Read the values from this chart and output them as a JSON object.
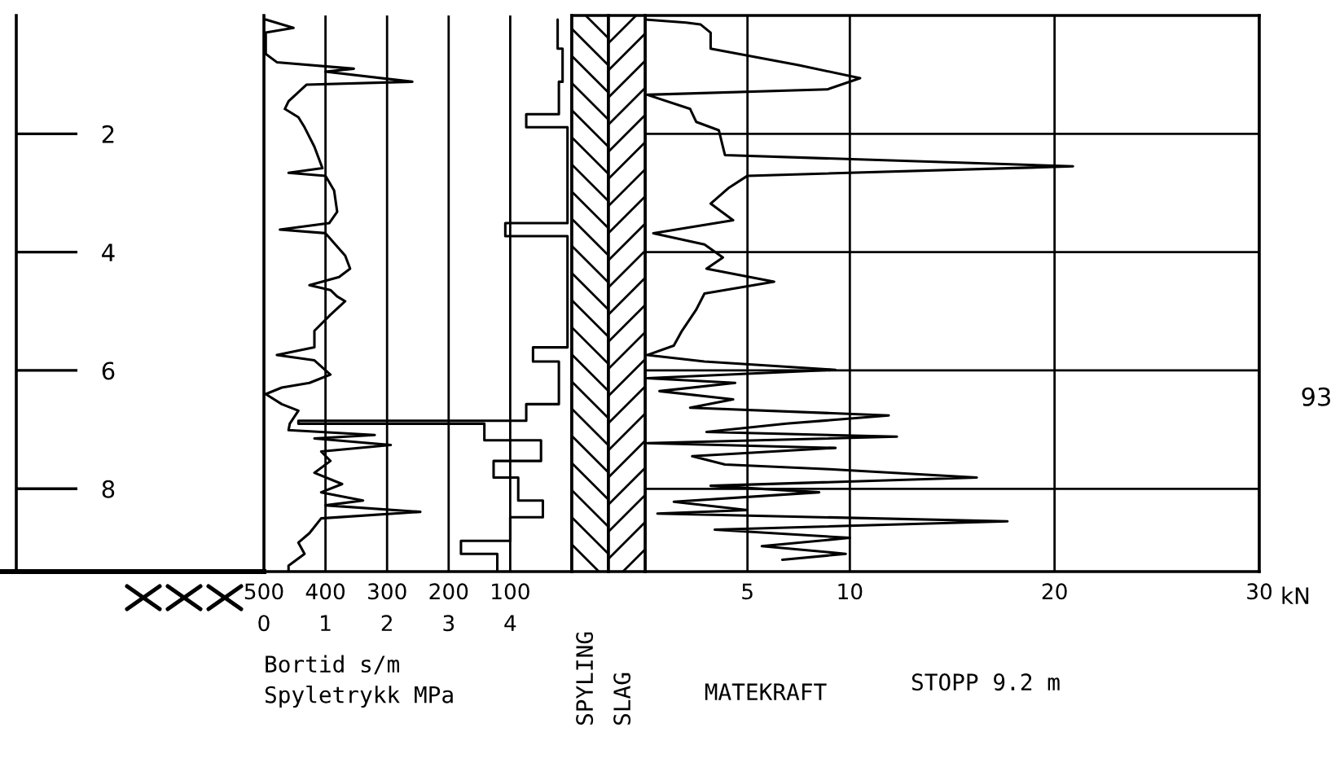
{
  "chart_data": [
    {
      "type": "line",
      "orientation": "horizontal",
      "xlabel": "Bortid s/m",
      "x2label": "Spyletrykk MPa",
      "xlim": [
        500,
        0
      ],
      "xticks": [
        500,
        400,
        300,
        200,
        100
      ],
      "x2lim": [
        0,
        5
      ],
      "x2ticks": [
        0,
        1,
        2,
        3,
        4
      ],
      "ylim": [
        9.4,
        0
      ],
      "yticks": [
        2,
        4,
        6,
        8
      ],
      "grid": "x",
      "annotations": [
        "SPYLING",
        "SLAG"
      ],
      "series": [
        {
          "color": "#000000",
          "x": [
            0.07,
            0.21,
            0.29,
            0.65,
            0.79,
            0.9,
            0.95,
            1.12,
            1.17,
            1.45,
            1.58,
            1.72,
            1.89,
            2.22,
            2.58,
            2.66,
            2.71,
            2.96,
            3.32,
            3.51,
            3.62,
            3.68,
            4.06,
            4.28,
            4.42,
            4.56,
            4.64,
            4.75,
            4.83,
            5.06,
            5.33,
            5.61,
            5.74,
            5.83,
            6.07,
            6.21,
            6.29,
            6.4,
            6.57,
            6.68,
            6.9,
            7.01,
            7.09,
            7.15,
            7.26,
            7.37,
            7.53,
            7.73,
            7.92,
            8.06,
            8.2,
            8.28,
            8.39,
            8.5,
            8.75,
            8.91,
            9.1,
            9.3,
            9.4
          ],
          "values": [
            497,
            452,
            497,
            497,
            479,
            354,
            400,
            259,
            431,
            460,
            466,
            444,
            434,
            418,
            405,
            460,
            400,
            386,
            381,
            394,
            474,
            400,
            368,
            360,
            378,
            426,
            392,
            381,
            368,
            392,
            418,
            418,
            479,
            418,
            392,
            426,
            471,
            497,
            471,
            444,
            458,
            460,
            320,
            418,
            294,
            407,
            392,
            418,
            373,
            407,
            339,
            400,
            246,
            407,
            426,
            444,
            434,
            460,
            460
          ]
        },
        {
          "type": "step",
          "axis": "x2",
          "color": "#000000",
          "x": [
            0.07,
            0.56,
            1.12,
            1.67,
            1.89,
            3.51,
            3.73,
            5.61,
            5.85,
            6.57,
            6.85,
            6.9,
            7.18,
            7.53,
            7.81,
            8.2,
            8.48,
            8.88,
            9.1,
            9.4
          ],
          "values": [
            4.77,
            4.85,
            4.79,
            4.26,
            4.93,
            3.92,
            4.93,
            4.37,
            4.79,
            4.26,
            0.56,
            3.58,
            4.5,
            3.73,
            4.13,
            4.53,
            4,
            3.2,
            3.79,
            3.79
          ]
        }
      ]
    },
    {
      "type": "line",
      "orientation": "horizontal",
      "xlabel": "MATEKRAFT",
      "xlim": [
        0,
        30
      ],
      "xticks": [
        5,
        10,
        20,
        30
      ],
      "ylim": [
        9.4,
        0
      ],
      "yticks": [
        2,
        4,
        6,
        8
      ],
      "tick_labels": "x",
      "grid": true,
      "annotations": [
        "kN",
        "STOPP 9.2 m",
        "93"
      ],
      "series": [
        {
          "color": "#000000",
          "x": [
            0.07,
            0.12,
            0.15,
            0.29,
            0.56,
            0.84,
            1.06,
            1.25,
            1.34,
            1.58,
            1.8,
            1.94,
            2.22,
            2.36,
            2.55,
            2.71,
            2.91,
            3.18,
            3.46,
            3.68,
            3.87,
            4.09,
            4.28,
            4.5,
            4.7,
            4.97,
            5.33,
            5.58,
            5.74,
            5.85,
            5.99,
            6.13,
            6.21,
            6.35,
            6.49,
            6.63,
            6.76,
            6.9,
            7.04,
            7.12,
            7.23,
            7.31,
            7.45,
            7.59,
            7.67,
            7.81,
            7.95,
            8.06,
            8.22,
            8.36,
            8.42,
            8.55,
            8.69,
            8.83,
            8.97,
            9.1,
            9.2
          ],
          "values": [
            0,
            2,
            2.7,
            3.2,
            3.2,
            7.5,
            10.5,
            8.9,
            0.1,
            2.2,
            2.5,
            3.6,
            3.8,
            3.9,
            20.9,
            5,
            4.1,
            3.2,
            4.3,
            0.4,
            2.9,
            3.8,
            3,
            6.3,
            2.9,
            2.5,
            1.8,
            1.4,
            0.1,
            2.9,
            9.3,
            0.1,
            4.4,
            0.7,
            4.3,
            2.2,
            11.9,
            6.9,
            3,
            12.3,
            0.1,
            9.3,
            2.3,
            3.9,
            9,
            16.2,
            3.2,
            8.5,
            1.4,
            5,
            0.6,
            17.7,
            3.4,
            10,
            5.7,
            9.8,
            6.7
          ]
        }
      ]
    }
  ]
}
